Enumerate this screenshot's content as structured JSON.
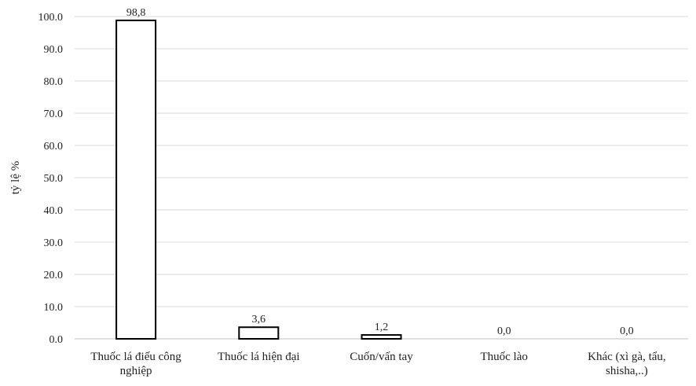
{
  "chart_data": {
    "type": "bar",
    "categories": [
      [
        "Thuốc lá điếu công",
        "nghiệp"
      ],
      [
        "Thuốc lá hiện đại"
      ],
      [
        "Cuốn/vấn tay"
      ],
      [
        "Thuốc lào"
      ],
      [
        "Khác (xì gà, tẩu,",
        "shisha,..)"
      ]
    ],
    "values": [
      98.8,
      3.6,
      1.2,
      0.0,
      0.0
    ],
    "value_labels": [
      "98,8",
      "3,6",
      "1,2",
      "0,0",
      "0,0"
    ],
    "ylabel": "tỷ lệ %",
    "ylim": [
      0,
      100
    ],
    "yticks": [
      0,
      10,
      20,
      30,
      40,
      50,
      60,
      70,
      80,
      90,
      100
    ],
    "ytick_labels": [
      "0.0",
      "10.0",
      "20.0",
      "30.0",
      "40.0",
      "50.0",
      "60.0",
      "70.0",
      "80.0",
      "90.0",
      "100.0"
    ],
    "grid": true,
    "legend": "none",
    "colors": {
      "bar_fill": "#ffffff",
      "bar_stroke": "#000000",
      "grid": "#d9d9d9",
      "axis": "#bfbfbf"
    }
  }
}
